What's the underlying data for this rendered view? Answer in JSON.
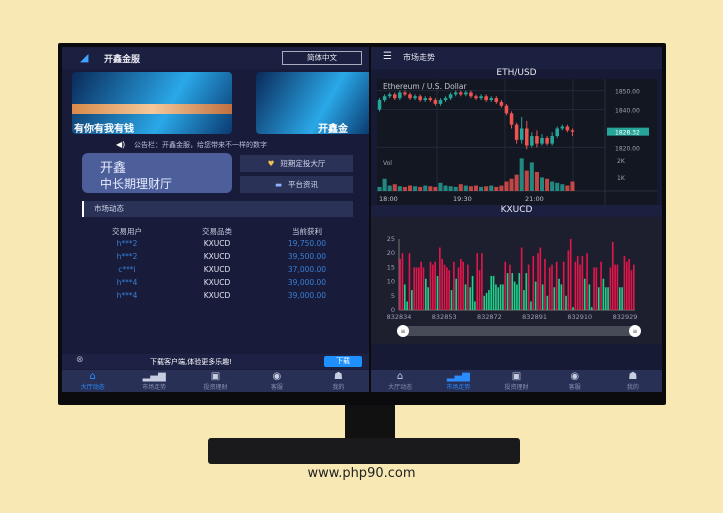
{
  "left": {
    "brand": "开鑫金服",
    "lang_button": "简体中文",
    "banners": [
      "有你有我有钱",
      "开鑫金"
    ],
    "notice": "公告栏：开鑫金服，给您带来不一样的数字",
    "card": {
      "line1": "开鑫",
      "line2": "中长期理财厅"
    },
    "buttons": [
      "短期定投大厅",
      "平台资讯"
    ],
    "section_title": "市场动态",
    "table": {
      "headers": [
        "交易用户",
        "交易品类",
        "当前获利"
      ],
      "rows": [
        [
          "h***2",
          "KXUCD",
          "19,750.00"
        ],
        [
          "h***2",
          "KXUCD",
          "39,500.00"
        ],
        [
          "c***i",
          "KXUCD",
          "37,000.00"
        ],
        [
          "h***4",
          "KXUCD",
          "39,000.00"
        ],
        [
          "h***4",
          "KXUCD",
          "39,000.00"
        ]
      ]
    },
    "download": {
      "text": "下载客户端,体验更多乐趣!",
      "button": "下载"
    },
    "active_tab": 0
  },
  "tabs": [
    {
      "label": "大厅动态",
      "icon": "home-icon"
    },
    {
      "label": "市场走势",
      "icon": "bar-chart-icon"
    },
    {
      "label": "投资理财",
      "icon": "wallet-icon"
    },
    {
      "label": "客服",
      "icon": "headset-icon"
    },
    {
      "label": "我的",
      "icon": "user-icon"
    }
  ],
  "right": {
    "header": "市场走势",
    "active_tab": 1
  },
  "colors": {
    "up": "#26a69a",
    "down": "#ef5350",
    "bar_up": "#1fd18b",
    "bar_down": "#e0174a",
    "accent": "#2a8cff"
  },
  "chart_data": [
    {
      "type": "candlestick",
      "title": "ETH/USD",
      "subtitle": "Ethereum / U.S. Dollar",
      "volume_label": "Vol",
      "x_ticks": [
        "18:00",
        "19:30",
        "21:00"
      ],
      "y_ticks": [
        1850,
        1840,
        1820
      ],
      "last_price": "1828.32",
      "vol_ticks": [
        "2K",
        "1K"
      ],
      "ylim": [
        1816,
        1854
      ],
      "candles": [
        [
          1840,
          1845,
          1846,
          1839
        ],
        [
          1845,
          1847,
          1848,
          1844
        ],
        [
          1847,
          1848,
          1849,
          1846
        ],
        [
          1848,
          1846,
          1849,
          1845
        ],
        [
          1846,
          1849,
          1850,
          1845
        ],
        [
          1849,
          1848,
          1850,
          1847
        ],
        [
          1848,
          1846,
          1849,
          1845
        ],
        [
          1846,
          1847,
          1848,
          1845
        ],
        [
          1847,
          1845,
          1848,
          1844
        ],
        [
          1845,
          1846,
          1847,
          1844
        ],
        [
          1846,
          1845,
          1847,
          1844
        ],
        [
          1845,
          1843,
          1846,
          1842
        ],
        [
          1843,
          1845,
          1846,
          1842
        ],
        [
          1845,
          1846,
          1847,
          1844
        ],
        [
          1846,
          1848,
          1849,
          1845
        ],
        [
          1848,
          1849,
          1850,
          1847
        ],
        [
          1849,
          1848,
          1850,
          1847
        ],
        [
          1848,
          1849,
          1850,
          1847
        ],
        [
          1849,
          1847,
          1850,
          1846
        ],
        [
          1847,
          1846,
          1848,
          1845
        ],
        [
          1846,
          1847,
          1848,
          1845
        ],
        [
          1847,
          1845,
          1848,
          1844
        ],
        [
          1845,
          1846,
          1847,
          1844
        ],
        [
          1846,
          1844,
          1847,
          1843
        ],
        [
          1844,
          1842,
          1845,
          1841
        ],
        [
          1842,
          1838,
          1843,
          1837
        ],
        [
          1838,
          1832,
          1839,
          1830
        ],
        [
          1832,
          1824,
          1833,
          1822
        ],
        [
          1824,
          1830,
          1836,
          1822
        ],
        [
          1830,
          1821,
          1834,
          1819
        ],
        [
          1821,
          1826,
          1828,
          1820
        ],
        [
          1826,
          1822,
          1829,
          1820
        ],
        [
          1822,
          1825,
          1827,
          1821
        ],
        [
          1825,
          1822,
          1826,
          1821
        ],
        [
          1822,
          1826,
          1828,
          1821
        ],
        [
          1826,
          1830,
          1831,
          1825
        ],
        [
          1830,
          1831,
          1832,
          1829
        ],
        [
          1831,
          1829,
          1832,
          1828
        ],
        [
          1829,
          1828.32,
          1830,
          1826
        ]
      ],
      "volumes": [
        300,
        900,
        400,
        500,
        350,
        300,
        400,
        350,
        300,
        400,
        350,
        300,
        600,
        400,
        350,
        300,
        500,
        400,
        350,
        400,
        300,
        350,
        400,
        300,
        400,
        700,
        900,
        1200,
        2400,
        1500,
        2100,
        1400,
        1000,
        900,
        700,
        600,
        500,
        400,
        700
      ],
      "grid": true
    },
    {
      "type": "bar",
      "title": "KXUCD",
      "y_ticks": [
        0,
        5,
        10,
        15,
        20,
        25
      ],
      "ylim": [
        0,
        25
      ],
      "x_ticks": [
        "832834",
        "832853",
        "832872",
        "832891",
        "832910",
        "832929"
      ],
      "values": [
        18,
        20,
        9,
        3,
        20,
        7,
        15,
        15,
        15,
        17,
        15,
        11,
        8,
        17,
        16,
        17,
        12,
        22,
        18,
        16,
        15,
        14,
        7,
        17,
        11,
        15,
        18,
        17,
        9,
        16,
        8,
        12,
        3,
        20,
        14,
        20,
        5,
        6,
        7,
        12,
        12,
        9,
        8,
        9,
        9,
        17,
        13,
        16,
        13,
        10,
        9,
        13,
        22,
        7,
        13,
        16,
        3,
        19,
        10,
        20,
        22,
        9,
        18,
        5,
        15,
        16,
        8,
        17,
        11,
        9,
        17,
        5,
        21,
        25,
        1,
        17,
        19,
        16,
        19,
        11,
        20,
        9,
        1,
        15,
        15,
        8,
        17,
        11,
        8,
        8,
        15,
        24,
        16,
        16,
        8,
        8,
        19,
        17,
        18,
        14,
        16
      ],
      "up": [
        0,
        0,
        1,
        1,
        0,
        1,
        0,
        0,
        0,
        0,
        0,
        1,
        1,
        0,
        0,
        0,
        1,
        0,
        0,
        0,
        0,
        0,
        1,
        0,
        1,
        0,
        0,
        0,
        1,
        0,
        1,
        1,
        1,
        0,
        0,
        0,
        1,
        1,
        1,
        1,
        1,
        1,
        1,
        1,
        1,
        0,
        1,
        0,
        1,
        1,
        1,
        1,
        0,
        1,
        1,
        0,
        1,
        0,
        1,
        0,
        0,
        1,
        0,
        1,
        0,
        0,
        1,
        0,
        1,
        1,
        0,
        1,
        0,
        0,
        1,
        0,
        0,
        0,
        0,
        1,
        0,
        1,
        1,
        0,
        0,
        1,
        0,
        1,
        1,
        1,
        0,
        0,
        0,
        0,
        1,
        1,
        0,
        0,
        0,
        0,
        0
      ]
    }
  ]
}
